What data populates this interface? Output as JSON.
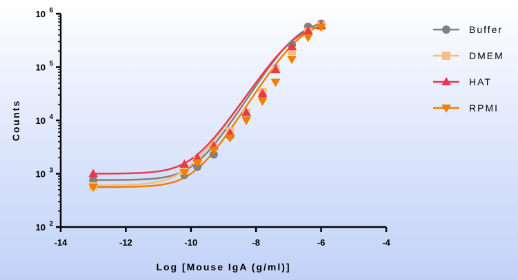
{
  "chart_data": {
    "type": "scatter",
    "title": "",
    "xlabel": "Log [Mouse IgA (g/ml)]",
    "ylabel": "Counts",
    "xlim": [
      -14,
      -4
    ],
    "ylim_log10": [
      2,
      6
    ],
    "yscale": "log",
    "x_ticks": [
      "-14",
      "-12",
      "-10",
      "-8",
      "-6",
      "-4"
    ],
    "y_ticks": [
      {
        "base": "10",
        "exp": "2"
      },
      {
        "base": "10",
        "exp": "3"
      },
      {
        "base": "10",
        "exp": "4"
      },
      {
        "base": "10",
        "exp": "5"
      },
      {
        "base": "10",
        "exp": "6"
      }
    ],
    "legend_position": "right",
    "grid": false,
    "series": [
      {
        "name": "Buffer",
        "color": "#808080",
        "marker": "circle",
        "x": [
          -13,
          -10.2,
          -9.8,
          -9.3,
          -8.8,
          -8.3,
          -7.8,
          -7.4,
          -6.9,
          -6.4,
          -6
        ],
        "y": [
          750,
          950,
          1350,
          2300,
          5100,
          12000,
          30000,
          95000,
          260000,
          570000,
          650000
        ],
        "fit": {
          "bottom": 760,
          "top": 800000,
          "ec50": -6.7,
          "hill": 0.95
        }
      },
      {
        "name": "DMEM",
        "color": "#F7BE81",
        "marker": "square",
        "x": [
          -13,
          -10.2,
          -9.8,
          -9.3,
          -8.8,
          -8.3,
          -7.8,
          -7.4,
          -6.9,
          -6.4,
          -6
        ],
        "y": [
          580,
          1150,
          1800,
          3100,
          6200,
          14000,
          34000,
          90000,
          200000,
          460000,
          590000
        ],
        "fit": {
          "bottom": 600,
          "top": 720000,
          "ec50": -6.75,
          "hill": 0.9
        }
      },
      {
        "name": "HAT",
        "color": "#E8394A",
        "marker": "triangle-up",
        "x": [
          -13,
          -10.2,
          -9.8,
          -9.3,
          -8.8,
          -8.3,
          -7.8,
          -7.4,
          -6.9,
          -6.4,
          -6
        ],
        "y": [
          1000,
          1500,
          2000,
          3300,
          5800,
          14000,
          32000,
          90000,
          240000,
          480000,
          600000
        ],
        "fit": {
          "bottom": 1000,
          "top": 720000,
          "ec50": -6.75,
          "hill": 0.9
        }
      },
      {
        "name": "RPMI",
        "color": "#F07F00",
        "marker": "triangle-down",
        "x": [
          -13,
          -10.2,
          -9.8,
          -9.3,
          -8.8,
          -8.3,
          -7.8,
          -7.4,
          -6.9,
          -6.4,
          -6
        ],
        "y": [
          560,
          1050,
          1600,
          2800,
          4700,
          10000,
          23000,
          52000,
          140000,
          360000,
          560000
        ],
        "fit": {
          "bottom": 560,
          "top": 750000,
          "ec50": -6.6,
          "hill": 0.95
        }
      }
    ]
  }
}
